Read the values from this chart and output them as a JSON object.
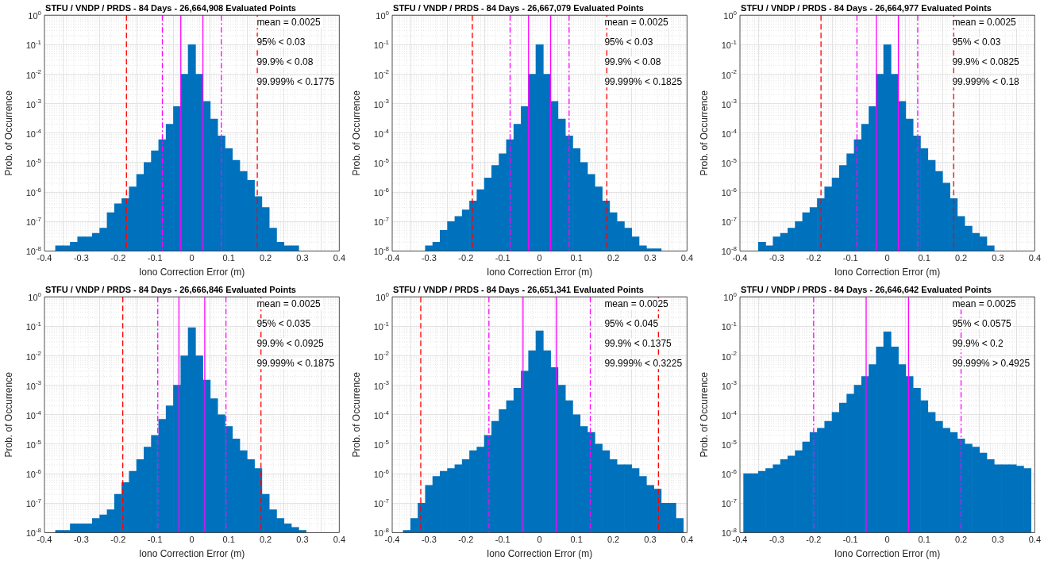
{
  "chart_data": [
    {
      "type": "histogram",
      "title": "STFU / VNDP / PRDS - 84 Days - 26,664,908 Evaluated Points",
      "xlabel": "Iono Correction Error (m)",
      "ylabel": "Prob. of Occurrence",
      "color": "#0072bd",
      "log": "y",
      "grid": true,
      "bins": [
        -0.39,
        -0.37,
        -0.35,
        -0.33,
        -0.31,
        -0.29,
        -0.27,
        -0.25,
        -0.23,
        -0.21,
        -0.19,
        -0.17,
        -0.15,
        -0.13,
        -0.11,
        -0.09,
        -0.07,
        -0.05,
        -0.03,
        -0.01,
        0.01,
        0.03,
        0.05,
        0.07,
        0.09,
        0.11,
        0.13,
        0.15,
        0.17,
        0.19,
        0.21,
        0.23,
        0.25,
        0.27,
        0.29,
        0.31,
        0.33,
        0.35,
        0.37,
        0.39
      ],
      "values": [
        null,
        1.5e-08,
        1.5e-08,
        2e-08,
        3e-08,
        3e-08,
        4e-08,
        6e-08,
        2e-07,
        4e-07,
        6e-07,
        1.5e-06,
        4e-06,
        1e-05,
        2.5e-05,
        6e-05,
        0.0002,
        0.0008,
        0.01,
        0.1,
        0.01,
        0.0012,
        0.0003,
        8e-05,
        3e-05,
        1.2e-05,
        5e-06,
        2.5e-06,
        7e-07,
        3e-07,
        6e-08,
        2e-08,
        1.5e-08,
        1.5e-08,
        null,
        null,
        null,
        null,
        null
      ],
      "xlim": [
        -0.4,
        0.4
      ],
      "xticks": [
        -0.4,
        -0.3,
        -0.2,
        -0.1,
        0,
        0.1,
        0.2,
        0.3,
        0.4
      ],
      "ylim": [
        1e-08,
        1
      ],
      "yticks": [
        {
          "value": 1e-08,
          "label": "10$^{-8}$"
        },
        {
          "value": 1e-07,
          "label": "10$^{-7}$"
        },
        {
          "value": 1e-06,
          "label": "10$^{-6}$"
        },
        {
          "value": 1e-05,
          "label": "10$^{-5}$"
        },
        {
          "value": 0.0001,
          "label": "10$^{-4}$"
        },
        {
          "value": 0.001,
          "label": "10$^{-3}$"
        },
        {
          "value": 0.01,
          "label": "10$^{-2}$"
        },
        {
          "value": 0.1,
          "label": "10$^{-1}$"
        },
        {
          "value": 1,
          "label": "10$^{0}$"
        }
      ],
      "ref_lines": [
        {
          "axis": "x",
          "value": -0.03,
          "color": "#ff00ff",
          "line_style": "solid"
        },
        {
          "axis": "x",
          "value": 0.03,
          "color": "#ff00ff",
          "line_style": "solid"
        },
        {
          "axis": "x",
          "value": -0.08,
          "color": "#ff00ff",
          "line_style": "dashdot"
        },
        {
          "axis": "x",
          "value": 0.08,
          "color": "#ff00ff",
          "line_style": "dashdot"
        },
        {
          "axis": "x",
          "value": -0.1775,
          "color": "#ff0000",
          "line_style": "dashed"
        },
        {
          "axis": "x",
          "value": 0.1775,
          "color": "#ff0000",
          "line_style": "dashed"
        }
      ],
      "annotations": [
        "mean = 0.0025",
        "95% < 0.03",
        "99.9% < 0.08",
        "99.999% < 0.1775"
      ]
    },
    {
      "type": "histogram",
      "title": "STFU / VNDP / PRDS - 84 Days - 26,667,079 Evaluated Points",
      "xlabel": "Iono Correction Error (m)",
      "ylabel": "Prob. of Occurrence",
      "color": "#0072bd",
      "log": "y",
      "grid": true,
      "bins": [
        -0.39,
        -0.37,
        -0.35,
        -0.33,
        -0.31,
        -0.29,
        -0.27,
        -0.25,
        -0.23,
        -0.21,
        -0.19,
        -0.17,
        -0.15,
        -0.13,
        -0.11,
        -0.09,
        -0.07,
        -0.05,
        -0.03,
        -0.01,
        0.01,
        0.03,
        0.05,
        0.07,
        0.09,
        0.11,
        0.13,
        0.15,
        0.17,
        0.19,
        0.21,
        0.23,
        0.25,
        0.27,
        0.29,
        0.31,
        0.33,
        0.35,
        0.37,
        0.39
      ],
      "values": [
        null,
        null,
        null,
        null,
        1.5e-08,
        2e-08,
        5e-08,
        1e-07,
        1.5e-07,
        2.5e-07,
        5e-07,
        1.2e-06,
        3e-06,
        8e-06,
        2e-05,
        6e-05,
        0.0002,
        0.0008,
        0.01,
        0.1,
        0.01,
        0.0012,
        0.0003,
        8e-05,
        3e-05,
        1e-05,
        4e-06,
        1.5e-06,
        5e-07,
        2e-07,
        1e-07,
        6e-08,
        3e-08,
        1.5e-08,
        1.2e-08,
        1.2e-08,
        null,
        null,
        null
      ],
      "xlim": [
        -0.4,
        0.4
      ],
      "xticks": [
        -0.4,
        -0.3,
        -0.2,
        -0.1,
        0,
        0.1,
        0.2,
        0.3,
        0.4
      ],
      "ylim": [
        1e-08,
        1
      ],
      "yticks": [
        {
          "value": 1e-08,
          "label": "10$^{-8}$"
        },
        {
          "value": 1e-07,
          "label": "10$^{-7}$"
        },
        {
          "value": 1e-06,
          "label": "10$^{-6}$"
        },
        {
          "value": 1e-05,
          "label": "10$^{-5}$"
        },
        {
          "value": 0.0001,
          "label": "10$^{-4}$"
        },
        {
          "value": 0.001,
          "label": "10$^{-3}$"
        },
        {
          "value": 0.01,
          "label": "10$^{-2}$"
        },
        {
          "value": 0.1,
          "label": "10$^{-1}$"
        },
        {
          "value": 1,
          "label": "10$^{0}$"
        }
      ],
      "ref_lines": [
        {
          "axis": "x",
          "value": -0.03,
          "color": "#ff00ff",
          "line_style": "solid"
        },
        {
          "axis": "x",
          "value": 0.03,
          "color": "#ff00ff",
          "line_style": "solid"
        },
        {
          "axis": "x",
          "value": -0.08,
          "color": "#ff00ff",
          "line_style": "dashdot"
        },
        {
          "axis": "x",
          "value": 0.08,
          "color": "#ff00ff",
          "line_style": "dashdot"
        },
        {
          "axis": "x",
          "value": -0.1825,
          "color": "#ff0000",
          "line_style": "dashed"
        },
        {
          "axis": "x",
          "value": 0.1825,
          "color": "#ff0000",
          "line_style": "dashed"
        }
      ],
      "annotations": [
        "mean = 0.0025",
        "95% < 0.03",
        "99.9% < 0.08",
        "99.999% < 0.1825"
      ]
    },
    {
      "type": "histogram",
      "title": "STFU / VNDP / PRDS - 84 Days - 26,664,977 Evaluated Points",
      "xlabel": "Iono Correction Error (m)",
      "ylabel": "Prob. of Occurrence",
      "color": "#0072bd",
      "log": "y",
      "grid": true,
      "bins": [
        -0.39,
        -0.37,
        -0.35,
        -0.33,
        -0.31,
        -0.29,
        -0.27,
        -0.25,
        -0.23,
        -0.21,
        -0.19,
        -0.17,
        -0.15,
        -0.13,
        -0.11,
        -0.09,
        -0.07,
        -0.05,
        -0.03,
        -0.01,
        0.01,
        0.03,
        0.05,
        0.07,
        0.09,
        0.11,
        0.13,
        0.15,
        0.17,
        0.19,
        0.21,
        0.23,
        0.25,
        0.27,
        0.29,
        0.31,
        0.33,
        0.35,
        0.37,
        0.39
      ],
      "values": [
        null,
        null,
        2e-08,
        1.5e-08,
        3e-08,
        4e-08,
        6e-08,
        1e-07,
        2e-07,
        3e-07,
        6e-07,
        1.5e-06,
        3e-06,
        8e-06,
        2e-05,
        6e-05,
        0.0002,
        0.0008,
        0.01,
        0.1,
        0.01,
        0.0012,
        0.0003,
        8e-05,
        3e-05,
        1.2e-05,
        5e-06,
        2e-06,
        6e-07,
        1.5e-07,
        7e-08,
        4e-08,
        3e-08,
        1.5e-08,
        null,
        null,
        null,
        null,
        null
      ],
      "xlim": [
        -0.4,
        0.4
      ],
      "xticks": [
        -0.4,
        -0.3,
        -0.2,
        -0.1,
        0,
        0.1,
        0.2,
        0.3,
        0.4
      ],
      "ylim": [
        1e-08,
        1
      ],
      "yticks": [
        {
          "value": 1e-08,
          "label": "10$^{-8}$"
        },
        {
          "value": 1e-07,
          "label": "10$^{-7}$"
        },
        {
          "value": 1e-06,
          "label": "10$^{-6}$"
        },
        {
          "value": 1e-05,
          "label": "10$^{-5}$"
        },
        {
          "value": 0.0001,
          "label": "10$^{-4}$"
        },
        {
          "value": 0.001,
          "label": "10$^{-3}$"
        },
        {
          "value": 0.01,
          "label": "10$^{-2}$"
        },
        {
          "value": 0.1,
          "label": "10$^{-1}$"
        },
        {
          "value": 1,
          "label": "10$^{0}$"
        }
      ],
      "ref_lines": [
        {
          "axis": "x",
          "value": -0.03,
          "color": "#ff00ff",
          "line_style": "solid"
        },
        {
          "axis": "x",
          "value": 0.03,
          "color": "#ff00ff",
          "line_style": "solid"
        },
        {
          "axis": "x",
          "value": -0.0825,
          "color": "#ff00ff",
          "line_style": "dashdot"
        },
        {
          "axis": "x",
          "value": 0.0825,
          "color": "#ff00ff",
          "line_style": "dashdot"
        },
        {
          "axis": "x",
          "value": -0.18,
          "color": "#ff0000",
          "line_style": "dashed"
        },
        {
          "axis": "x",
          "value": 0.18,
          "color": "#ff0000",
          "line_style": "dashed"
        }
      ],
      "annotations": [
        "mean = 0.0025",
        "95% < 0.03",
        "99.9% < 0.0825",
        "99.999% < 0.18"
      ]
    },
    {
      "type": "histogram",
      "title": "STFU / VNDP / PRDS - 84 Days - 26,666,846 Evaluated Points",
      "xlabel": "Iono Correction Error (m)",
      "ylabel": "Prob. of Occurrence",
      "color": "#0072bd",
      "log": "y",
      "grid": true,
      "bins": [
        -0.39,
        -0.37,
        -0.35,
        -0.33,
        -0.31,
        -0.29,
        -0.27,
        -0.25,
        -0.23,
        -0.21,
        -0.19,
        -0.17,
        -0.15,
        -0.13,
        -0.11,
        -0.09,
        -0.07,
        -0.05,
        -0.03,
        -0.01,
        0.01,
        0.03,
        0.05,
        0.07,
        0.09,
        0.11,
        0.13,
        0.15,
        0.17,
        0.19,
        0.21,
        0.23,
        0.25,
        0.27,
        0.29,
        0.31,
        0.33,
        0.35,
        0.37,
        0.39
      ],
      "values": [
        null,
        1.2e-08,
        1.2e-08,
        2e-08,
        2e-08,
        2e-08,
        3e-08,
        4e-08,
        6e-08,
        2e-07,
        5e-07,
        1.2e-06,
        3e-06,
        8e-06,
        2e-05,
        7e-05,
        0.0002,
        0.001,
        0.01,
        0.09,
        0.01,
        0.0015,
        0.00035,
        0.0001,
        4e-05,
        1.5e-05,
        6e-06,
        3e-06,
        1.5e-06,
        2e-07,
        6e-08,
        3e-08,
        2e-08,
        1.5e-08,
        1.2e-08,
        null,
        null,
        null,
        null
      ],
      "xlim": [
        -0.4,
        0.4
      ],
      "xticks": [
        -0.4,
        -0.3,
        -0.2,
        -0.1,
        0,
        0.1,
        0.2,
        0.3,
        0.4
      ],
      "ylim": [
        1e-08,
        1
      ],
      "yticks": [
        {
          "value": 1e-08,
          "label": "10$^{-8}$"
        },
        {
          "value": 1e-07,
          "label": "10$^{-7}$"
        },
        {
          "value": 1e-06,
          "label": "10$^{-6}$"
        },
        {
          "value": 1e-05,
          "label": "10$^{-5}$"
        },
        {
          "value": 0.0001,
          "label": "10$^{-4}$"
        },
        {
          "value": 0.001,
          "label": "10$^{-3}$"
        },
        {
          "value": 0.01,
          "label": "10$^{-2}$"
        },
        {
          "value": 0.1,
          "label": "10$^{-1}$"
        },
        {
          "value": 1,
          "label": "10$^{0}$"
        }
      ],
      "ref_lines": [
        {
          "axis": "x",
          "value": -0.035,
          "color": "#ff00ff",
          "line_style": "solid"
        },
        {
          "axis": "x",
          "value": 0.035,
          "color": "#ff00ff",
          "line_style": "solid"
        },
        {
          "axis": "x",
          "value": -0.0925,
          "color": "#ff00ff",
          "line_style": "dashdot"
        },
        {
          "axis": "x",
          "value": 0.0925,
          "color": "#ff00ff",
          "line_style": "dashdot"
        },
        {
          "axis": "x",
          "value": -0.1875,
          "color": "#ff0000",
          "line_style": "dashed"
        },
        {
          "axis": "x",
          "value": 0.1875,
          "color": "#ff0000",
          "line_style": "dashed"
        }
      ],
      "annotations": [
        "mean = 0.0025",
        "95% < 0.035",
        "99.9% < 0.0925",
        "99.999% < 0.1875"
      ]
    },
    {
      "type": "histogram",
      "title": "STFU / VNDP / PRDS - 84 Days - 26,651,341 Evaluated Points",
      "xlabel": "Iono Correction Error (m)",
      "ylabel": "Prob. of Occurrence",
      "color": "#0072bd",
      "log": "y",
      "grid": true,
      "bins": [
        -0.39,
        -0.37,
        -0.35,
        -0.33,
        -0.31,
        -0.29,
        -0.27,
        -0.25,
        -0.23,
        -0.21,
        -0.19,
        -0.17,
        -0.15,
        -0.13,
        -0.11,
        -0.09,
        -0.07,
        -0.05,
        -0.03,
        -0.01,
        0.01,
        0.03,
        0.05,
        0.07,
        0.09,
        0.11,
        0.13,
        0.15,
        0.17,
        0.19,
        0.21,
        0.23,
        0.25,
        0.27,
        0.29,
        0.31,
        0.33,
        0.35,
        0.37,
        0.39
      ],
      "values": [
        null,
        1.2e-08,
        3e-08,
        1e-07,
        4e-07,
        8e-07,
        1.2e-06,
        1.5e-06,
        2e-06,
        3e-06,
        6e-06,
        8e-06,
        2e-05,
        6e-05,
        0.00015,
        0.0003,
        0.0008,
        0.003,
        0.015,
        0.07,
        0.015,
        0.004,
        0.001,
        0.0003,
        0.0001,
        4e-05,
        2.5e-05,
        1e-05,
        6e-06,
        3e-06,
        2e-06,
        2e-06,
        1.5e-06,
        8e-07,
        4e-07,
        3e-07,
        1e-07,
        1e-07,
        3e-08
      ],
      "xlim": [
        -0.4,
        0.4
      ],
      "xticks": [
        -0.4,
        -0.3,
        -0.2,
        -0.1,
        0,
        0.1,
        0.2,
        0.3,
        0.4
      ],
      "ylim": [
        1e-08,
        1
      ],
      "yticks": [
        {
          "value": 1e-08,
          "label": "10$^{-8}$"
        },
        {
          "value": 1e-07,
          "label": "10$^{-7}$"
        },
        {
          "value": 1e-06,
          "label": "10$^{-6}$"
        },
        {
          "value": 1e-05,
          "label": "10$^{-5}$"
        },
        {
          "value": 0.0001,
          "label": "10$^{-4}$"
        },
        {
          "value": 0.001,
          "label": "10$^{-3}$"
        },
        {
          "value": 0.01,
          "label": "10$^{-2}$"
        },
        {
          "value": 0.1,
          "label": "10$^{-1}$"
        },
        {
          "value": 1,
          "label": "10$^{0}$"
        }
      ],
      "ref_lines": [
        {
          "axis": "x",
          "value": -0.045,
          "color": "#ff00ff",
          "line_style": "solid"
        },
        {
          "axis": "x",
          "value": 0.045,
          "color": "#ff00ff",
          "line_style": "solid"
        },
        {
          "axis": "x",
          "value": -0.1375,
          "color": "#ff00ff",
          "line_style": "dashdot"
        },
        {
          "axis": "x",
          "value": 0.1375,
          "color": "#ff00ff",
          "line_style": "dashdot"
        },
        {
          "axis": "x",
          "value": -0.3225,
          "color": "#ff0000",
          "line_style": "dashed"
        },
        {
          "axis": "x",
          "value": 0.3225,
          "color": "#ff0000",
          "line_style": "dashed"
        }
      ],
      "annotations": [
        "mean = 0.0025",
        "95% < 0.045",
        "99.9% < 0.1375",
        "99.999% < 0.3225"
      ]
    },
    {
      "type": "histogram",
      "title": "STFU / VNDP / PRDS - 84 Days - 26,646,642 Evaluated Points",
      "xlabel": "Iono Correction Error (m)",
      "ylabel": "Prob. of Occurrence",
      "color": "#0072bd",
      "log": "y",
      "grid": true,
      "bins": [
        -0.39,
        -0.37,
        -0.35,
        -0.33,
        -0.31,
        -0.29,
        -0.27,
        -0.25,
        -0.23,
        -0.21,
        -0.19,
        -0.17,
        -0.15,
        -0.13,
        -0.11,
        -0.09,
        -0.07,
        -0.05,
        -0.03,
        -0.01,
        0.01,
        0.03,
        0.05,
        0.07,
        0.09,
        0.11,
        0.13,
        0.15,
        0.17,
        0.19,
        0.21,
        0.23,
        0.25,
        0.27,
        0.29,
        0.31,
        0.33,
        0.35,
        0.37,
        0.39
      ],
      "values": [
        1e-06,
        1e-06,
        1.2e-06,
        1.5e-06,
        2e-06,
        3e-06,
        4e-06,
        6e-06,
        1.2e-05,
        2.5e-05,
        3.5e-05,
        6e-05,
        0.00012,
        0.00025,
        0.0005,
        0.001,
        0.002,
        0.005,
        0.02,
        0.065,
        0.02,
        0.005,
        0.002,
        0.0008,
        0.0003,
        0.00012,
        6e-05,
        3.5e-05,
        2.5e-05,
        1.5e-05,
        1e-05,
        8e-06,
        5e-06,
        3e-06,
        2e-06,
        2e-06,
        2e-06,
        1.8e-06,
        1.5e-06
      ],
      "xlim": [
        -0.4,
        0.4
      ],
      "xticks": [
        -0.4,
        -0.3,
        -0.2,
        -0.1,
        0,
        0.1,
        0.2,
        0.3,
        0.4
      ],
      "ylim": [
        1e-08,
        1
      ],
      "yticks": [
        {
          "value": 1e-08,
          "label": "10$^{-8}$"
        },
        {
          "value": 1e-07,
          "label": "10$^{-7}$"
        },
        {
          "value": 1e-06,
          "label": "10$^{-6}$"
        },
        {
          "value": 1e-05,
          "label": "10$^{-5}$"
        },
        {
          "value": 0.0001,
          "label": "10$^{-4}$"
        },
        {
          "value": 0.001,
          "label": "10$^{-3}$"
        },
        {
          "value": 0.01,
          "label": "10$^{-2}$"
        },
        {
          "value": 0.1,
          "label": "10$^{-1}$"
        },
        {
          "value": 1,
          "label": "10$^{0}$"
        }
      ],
      "ref_lines": [
        {
          "axis": "x",
          "value": -0.0575,
          "color": "#ff00ff",
          "line_style": "solid"
        },
        {
          "axis": "x",
          "value": 0.0575,
          "color": "#ff00ff",
          "line_style": "solid"
        },
        {
          "axis": "x",
          "value": -0.2,
          "color": "#ff00ff",
          "line_style": "dashdot"
        },
        {
          "axis": "x",
          "value": 0.2,
          "color": "#ff00ff",
          "line_style": "dashdot"
        }
      ],
      "annotations": [
        "mean = 0.0025",
        "95% < 0.0575",
        "99.9% < 0.2",
        "99.999% > 0.4925"
      ]
    }
  ]
}
